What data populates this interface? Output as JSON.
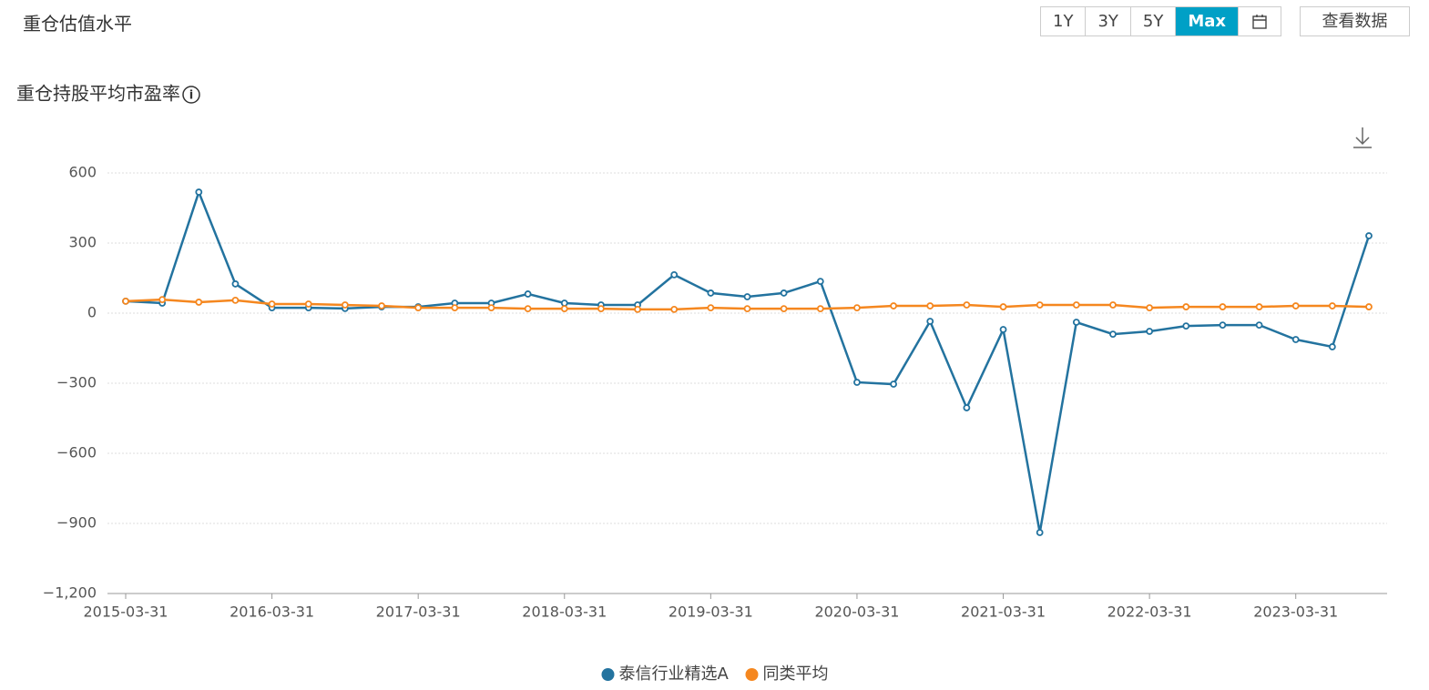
{
  "header": {
    "title": "重仓估值水平",
    "range_buttons": [
      {
        "label": "1Y",
        "active": false
      },
      {
        "label": "3Y",
        "active": false
      },
      {
        "label": "5Y",
        "active": false
      },
      {
        "label": "Max",
        "active": true
      }
    ],
    "view_data_button": "查看数据"
  },
  "chart_data": {
    "type": "line",
    "title": "重仓持股平均市盈率",
    "categories": [
      "2015-03-31",
      null,
      null,
      null,
      "2016-03-31",
      null,
      null,
      null,
      "2017-03-31",
      null,
      null,
      null,
      "2018-03-31",
      null,
      null,
      null,
      "2019-03-31",
      null,
      null,
      null,
      "2020-03-31",
      null,
      null,
      null,
      "2021-03-31",
      null,
      null,
      null,
      "2022-03-31",
      null,
      null,
      null,
      "2023-03-31",
      null,
      null
    ],
    "series": [
      {
        "name": "泰信行业精选A",
        "color": "#23739f",
        "values": [
          51,
          43,
          518,
          125,
          23,
          23,
          20,
          27,
          27,
          43,
          43,
          82,
          43,
          35,
          35,
          164,
          86,
          70,
          86,
          136,
          -296,
          -304,
          -35,
          -405,
          -70,
          -939,
          -39,
          -90,
          -78,
          -55,
          -51,
          -51,
          -113,
          -144,
          331
        ]
      },
      {
        "name": "同类平均",
        "color": "#f5871f",
        "values": [
          51,
          58,
          47,
          55,
          39,
          39,
          35,
          31,
          23,
          23,
          23,
          19,
          19,
          19,
          16,
          16,
          23,
          19,
          19,
          19,
          23,
          31,
          31,
          35,
          27,
          35,
          35,
          35,
          23,
          27,
          27,
          27,
          31,
          31,
          27
        ]
      }
    ],
    "ylim": [
      -1200,
      600
    ],
    "yticks": [
      600,
      300,
      0,
      {
        "value": -300,
        "label": "−300"
      },
      {
        "value": -600,
        "label": "−600"
      },
      {
        "value": -900,
        "label": "−900"
      },
      {
        "value": -1200,
        "label": "−1,200"
      }
    ],
    "grid": true
  }
}
